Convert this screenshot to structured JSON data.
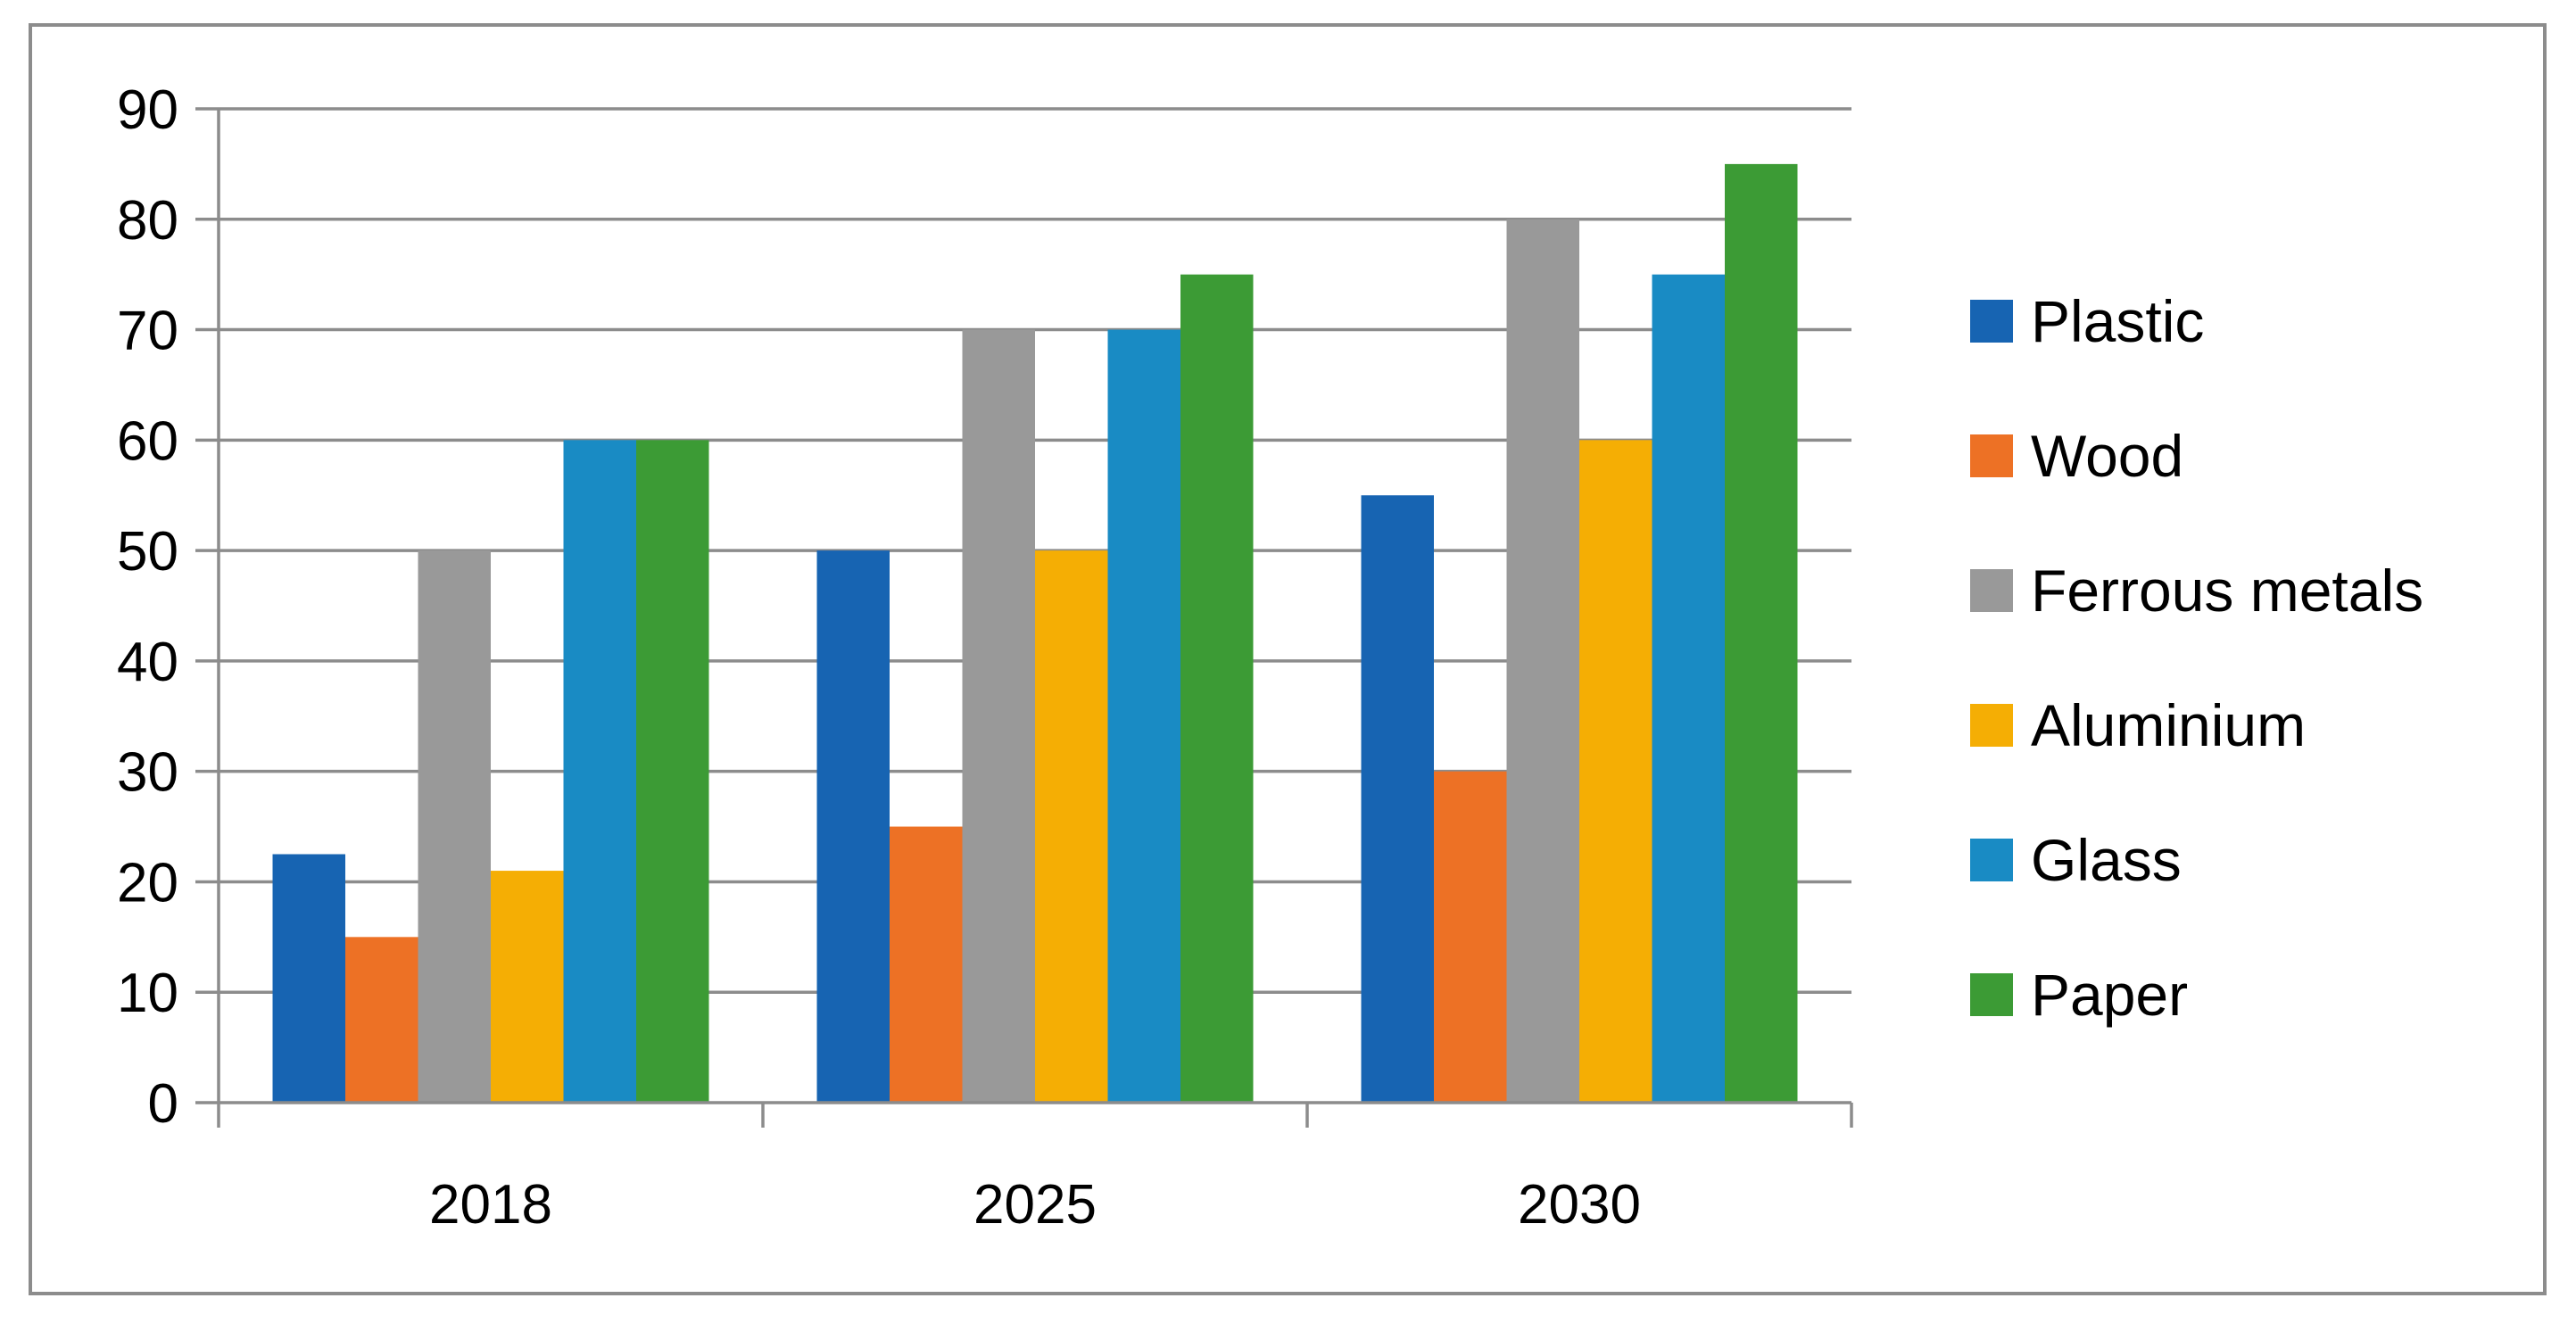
{
  "chart_data": {
    "type": "bar",
    "categories": [
      "2018",
      "2025",
      "2030"
    ],
    "series": [
      {
        "name": "Plastic",
        "color": "#1764b2",
        "values": [
          22.5,
          50,
          55
        ]
      },
      {
        "name": "Wood",
        "color": "#ed7125",
        "values": [
          15,
          25,
          30
        ]
      },
      {
        "name": "Ferrous metals",
        "color": "#999999",
        "values": [
          50,
          70,
          80
        ]
      },
      {
        "name": "Aluminium",
        "color": "#f5ae04",
        "values": [
          21,
          50,
          60
        ]
      },
      {
        "name": "Glass",
        "color": "#198bc4",
        "values": [
          60,
          70,
          75
        ]
      },
      {
        "name": "Paper",
        "color": "#3c9b35",
        "values": [
          60,
          75,
          85
        ]
      }
    ],
    "yticks": [
      "0",
      "10",
      "20",
      "30",
      "40",
      "50",
      "60",
      "70",
      "80",
      "90"
    ],
    "ylim": [
      0,
      90
    ],
    "title": "",
    "xlabel": "",
    "ylabel": "",
    "grid": true,
    "legend_position": "right"
  }
}
